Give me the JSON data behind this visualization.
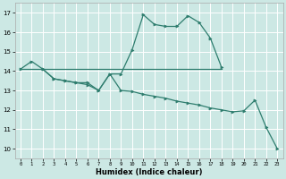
{
  "xlabel": "Humidex (Indice chaleur)",
  "bg_color": "#cce8e4",
  "grid_color": "#ffffff",
  "line_color": "#2e7d6e",
  "xlim": [
    -0.5,
    23.5
  ],
  "ylim": [
    9.5,
    17.5
  ],
  "yticks": [
    10,
    11,
    12,
    13,
    14,
    15,
    16,
    17
  ],
  "xticks": [
    0,
    1,
    2,
    3,
    4,
    5,
    6,
    7,
    8,
    9,
    10,
    11,
    12,
    13,
    14,
    15,
    16,
    17,
    18,
    19,
    20,
    21,
    22,
    23
  ],
  "line1_x": [
    0,
    1,
    2,
    3,
    4,
    5,
    6,
    7,
    8,
    9,
    10,
    11,
    12,
    13,
    14,
    15,
    16,
    17,
    18
  ],
  "line1_y": [
    14.1,
    14.5,
    14.1,
    13.6,
    13.5,
    13.4,
    13.4,
    13.0,
    13.85,
    13.85,
    15.1,
    16.9,
    16.4,
    16.3,
    16.3,
    16.85,
    16.5,
    15.7,
    14.2
  ],
  "line2_x": [
    0,
    18
  ],
  "line2_y": [
    14.1,
    14.1
  ],
  "line3_x": [
    2,
    3,
    4,
    5,
    6,
    7,
    8,
    9,
    10,
    11,
    12,
    13,
    14,
    15,
    16,
    17,
    18,
    19,
    20,
    21,
    22,
    23
  ],
  "line3_y": [
    14.1,
    13.6,
    13.5,
    13.4,
    13.3,
    13.0,
    13.85,
    13.0,
    12.95,
    12.8,
    12.7,
    12.6,
    12.45,
    12.35,
    12.25,
    12.1,
    12.0,
    11.9,
    11.95,
    12.5,
    11.1,
    10.0
  ]
}
